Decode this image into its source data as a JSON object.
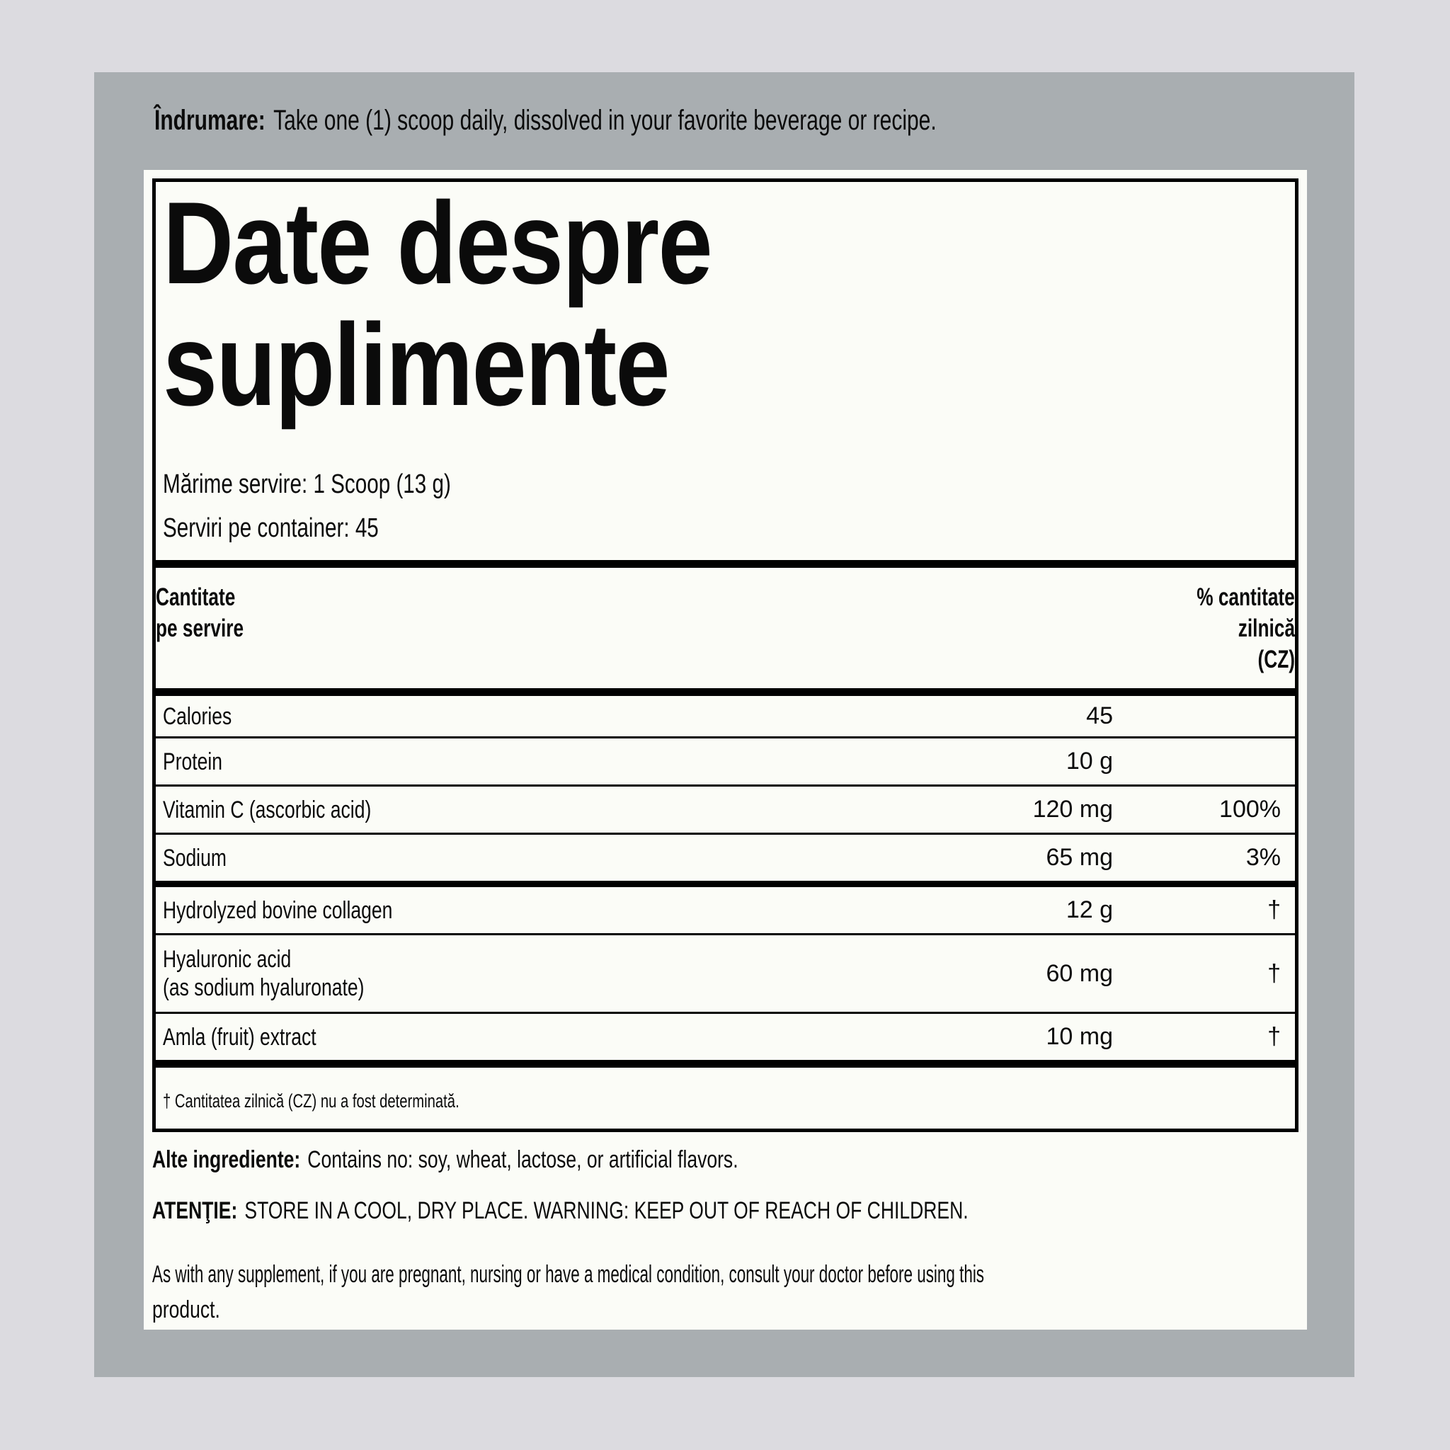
{
  "colors": {
    "page_bg": "#dcdbe0",
    "panel_bg": "#a9aeb1",
    "card_bg": "#fbfcf7",
    "ink": "#0b0b0b"
  },
  "directions": {
    "lead": "Îndrumare:",
    "text": "Take one (1) scoop daily, dissolved in your favorite beverage or recipe."
  },
  "facts": {
    "title_line1": "Date despre",
    "title_line2": "suplimente",
    "serving_size": "Mărime servire: 1 Scoop (13 g)",
    "servings_per_container": "Serviri pe container: 45",
    "header": {
      "amount_line1": "Cantitate",
      "amount_line2": "pe servire",
      "dv_line1": "% cantitate",
      "dv_line2": "zilnică",
      "dv_line3": "(CZ)"
    },
    "rows": [
      {
        "name": "Calories",
        "amount": "45",
        "dv": ""
      },
      {
        "name": "Protein",
        "amount": "10 g",
        "dv": ""
      },
      {
        "name": "Vitamin C (ascorbic acid)",
        "amount": "120 mg",
        "dv": "100%"
      },
      {
        "name": "Sodium",
        "amount": "65 mg",
        "dv": "3%"
      },
      {
        "name": "Hydrolyzed bovine collagen",
        "amount": "12 g",
        "dv": "†"
      },
      {
        "name": "Hyaluronic acid",
        "name_line2": "(as sodium hyaluronate)",
        "amount": "60 mg",
        "dv": "†"
      },
      {
        "name": "Amla (fruit) extract",
        "amount": "10 mg",
        "dv": "†"
      }
    ],
    "footnote": "† Cantitatea zilnică (CZ) nu a fost determinată."
  },
  "other_ingredients": {
    "lead": "Alte ingrediente:",
    "text": "Contains no: soy, wheat, lactose, or artificial flavors."
  },
  "caution": {
    "lead": "ATENŢIE:",
    "text": "STORE IN A COOL, DRY PLACE. WARNING: KEEP OUT OF REACH OF CHILDREN."
  },
  "disclaimer": {
    "line1": "As with any supplement, if you are pregnant, nursing or have a medical condition, consult your doctor before using this",
    "line2": "product."
  }
}
